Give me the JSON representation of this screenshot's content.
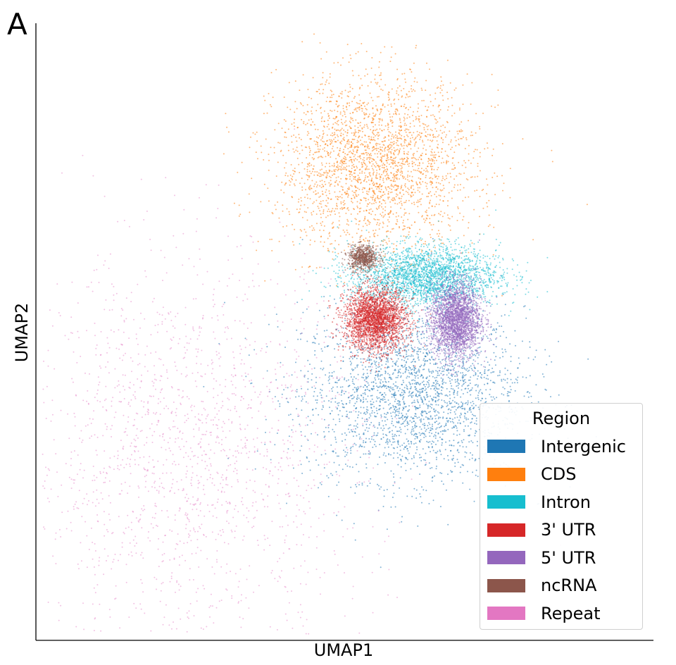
{
  "panel_label": "A",
  "chart_data": {
    "type": "scatter",
    "title": "",
    "xlabel": "UMAP1",
    "ylabel": "UMAP2",
    "xticks": [],
    "yticks": [],
    "grid": false,
    "legend": {
      "title": "Region",
      "placement": "lower-right",
      "entries": [
        {
          "name": "Intergenic",
          "color": "#1f77b4"
        },
        {
          "name": "CDS",
          "color": "#ff7f0e"
        },
        {
          "name": "Intron",
          "color": "#17becf"
        },
        {
          "name": "3' UTR",
          "color": "#d62728"
        },
        {
          "name": "5' UTR",
          "color": "#9467bd"
        },
        {
          "name": "ncRNA",
          "color": "#8c564b"
        },
        {
          "name": "Repeat",
          "color": "#e377c2"
        }
      ]
    },
    "clusters": [
      {
        "region": "Intergenic",
        "center": [
          0.61,
          0.4
        ],
        "spread": [
          0.09,
          0.07
        ],
        "density": "high"
      },
      {
        "region": "CDS",
        "center": [
          0.55,
          0.77
        ],
        "spread": [
          0.08,
          0.07
        ],
        "density": "high"
      },
      {
        "region": "Intron",
        "center": [
          0.63,
          0.59
        ],
        "spread": [
          0.06,
          0.025
        ],
        "density": "high"
      },
      {
        "region": "3' UTR",
        "center": [
          0.55,
          0.52
        ],
        "spread": [
          0.025,
          0.025
        ],
        "density": "high"
      },
      {
        "region": "5' UTR",
        "center": [
          0.68,
          0.52
        ],
        "spread": [
          0.02,
          0.03
        ],
        "density": "high"
      },
      {
        "region": "ncRNA",
        "center": [
          0.53,
          0.62
        ],
        "spread": [
          0.012,
          0.01
        ],
        "density": "medium"
      },
      {
        "region": "Repeat",
        "center": [
          0.25,
          0.3
        ],
        "spread": [
          0.14,
          0.16
        ],
        "density": "low"
      }
    ]
  }
}
